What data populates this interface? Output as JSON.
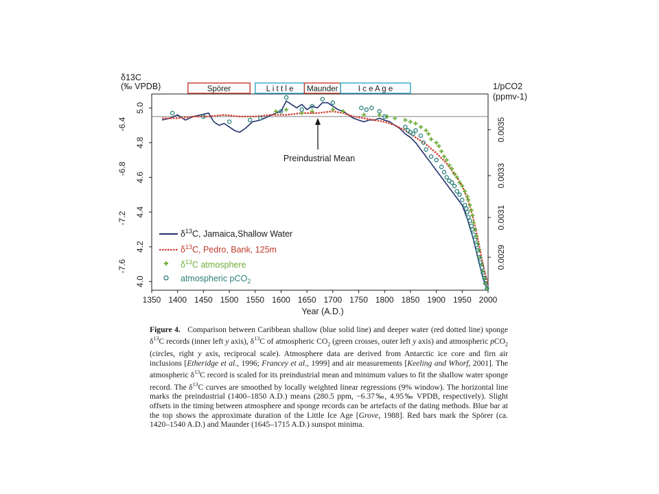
{
  "chart_data": {
    "type": "line",
    "x_label": "Year (A.D.)",
    "x_ticks": [
      1350,
      1400,
      1450,
      1500,
      1550,
      1600,
      1650,
      1700,
      1750,
      1800,
      1850,
      1900,
      1950,
      2000
    ],
    "xlim": [
      1350,
      2000
    ],
    "axis_inner_left": {
      "title_line1": "δ13C",
      "title_line2": "(‰ VPDB)",
      "ticks": [
        "4.0",
        "4.2",
        "4.4",
        "4.6",
        "4.8",
        "5.0"
      ],
      "ylim": [
        3.95,
        5.08
      ]
    },
    "axis_outer_left": {
      "ticks": [
        "-7.6",
        "-7.2",
        "-6.8",
        "-6.4"
      ]
    },
    "axis_right": {
      "title_line1": "1/pCO2",
      "title_line2": "(ppmv-1)",
      "ticks": [
        "0.0029",
        "0.0031",
        "0.0033",
        "0.0035"
      ],
      "scale": "reciprocal"
    },
    "reference_line": {
      "label": "Preindustrial Mean",
      "value": 4.95
    },
    "top_bars": [
      {
        "label": "Spörer",
        "start": 1420,
        "end": 1540,
        "color": "#c0392b"
      },
      {
        "label": "L i t t l e",
        "start": 1550,
        "end": 1645,
        "color": "#2fa4c8"
      },
      {
        "label": "Maunder",
        "start": 1645,
        "end": 1715,
        "color": "#c0392b"
      },
      {
        "label": "I c e   A g e",
        "start": 1715,
        "end": 1850,
        "color": "#2fa4c8"
      }
    ],
    "series": [
      {
        "name": "δ13C, Jamaica,Shallow Water",
        "style": "solid",
        "color": "#1f2f6b",
        "x": [
          1370,
          1385,
          1400,
          1415,
          1430,
          1445,
          1460,
          1470,
          1480,
          1490,
          1500,
          1510,
          1520,
          1530,
          1545,
          1560,
          1575,
          1590,
          1600,
          1610,
          1620,
          1630,
          1640,
          1650,
          1660,
          1670,
          1680,
          1690,
          1700,
          1710,
          1720,
          1730,
          1740,
          1750,
          1760,
          1770,
          1780,
          1790,
          1800,
          1810,
          1820,
          1830,
          1840,
          1850,
          1860,
          1870,
          1880,
          1890,
          1900,
          1910,
          1920,
          1930,
          1940,
          1950,
          1955,
          1960,
          1965,
          1970,
          1975,
          1980,
          1985,
          1990,
          1995,
          2000
        ],
        "y": [
          4.93,
          4.94,
          4.96,
          4.93,
          4.95,
          4.96,
          4.97,
          4.92,
          4.9,
          4.91,
          4.89,
          4.87,
          4.86,
          4.88,
          4.92,
          4.93,
          4.95,
          4.97,
          4.98,
          5.04,
          5.02,
          5.0,
          5.02,
          4.99,
          5.01,
          5.0,
          5.03,
          5.03,
          5.01,
          4.99,
          4.98,
          4.96,
          4.94,
          4.93,
          4.92,
          4.93,
          4.93,
          4.94,
          4.93,
          4.92,
          4.9,
          4.88,
          4.85,
          4.83,
          4.8,
          4.76,
          4.72,
          4.68,
          4.64,
          4.6,
          4.56,
          4.52,
          4.48,
          4.44,
          4.4,
          4.36,
          4.31,
          4.26,
          4.2,
          4.14,
          4.08,
          4.02,
          3.98,
          3.96
        ]
      },
      {
        "name": "δ13C, Pedro, Bank, 125m",
        "style": "dotted",
        "color": "#d23a2a",
        "x": [
          1370,
          1400,
          1430,
          1460,
          1490,
          1520,
          1550,
          1580,
          1610,
          1640,
          1670,
          1700,
          1720,
          1740,
          1760,
          1780,
          1800,
          1820,
          1840,
          1860,
          1880,
          1900,
          1920,
          1940,
          1950,
          1960,
          1970,
          1980,
          1990,
          2000
        ],
        "y": [
          4.94,
          4.94,
          4.95,
          4.95,
          4.96,
          4.95,
          4.95,
          4.96,
          4.96,
          4.97,
          4.97,
          4.98,
          4.97,
          4.95,
          4.94,
          4.93,
          4.92,
          4.9,
          4.87,
          4.83,
          4.79,
          4.74,
          4.68,
          4.6,
          4.55,
          4.48,
          4.38,
          4.25,
          4.1,
          3.98
        ]
      },
      {
        "name": "δ13C atmosphere",
        "style": "cross",
        "color": "#6fae3a",
        "x": [
          1590,
          1610,
          1640,
          1660,
          1700,
          1720,
          1760,
          1790,
          1805,
          1820,
          1840,
          1850,
          1860,
          1870,
          1880,
          1885,
          1890,
          1900,
          1905,
          1910,
          1915,
          1920,
          1925,
          1930,
          1935,
          1940,
          1945,
          1950,
          1955,
          1960,
          1962,
          1965,
          1968,
          1970,
          1972,
          1975,
          1978,
          1980,
          1983,
          1985,
          1988,
          1990,
          1993,
          1995,
          1998
        ],
        "y": [
          4.98,
          4.99,
          4.97,
          4.98,
          4.99,
          4.98,
          4.96,
          4.96,
          4.95,
          4.94,
          4.93,
          4.92,
          4.91,
          4.89,
          4.87,
          4.85,
          4.82,
          4.8,
          4.78,
          4.75,
          4.72,
          4.7,
          4.67,
          4.65,
          4.62,
          4.6,
          4.57,
          4.55,
          4.52,
          4.49,
          4.47,
          4.44,
          4.41,
          4.38,
          4.34,
          4.3,
          4.26,
          4.22,
          4.18,
          4.14,
          4.1,
          4.06,
          4.02,
          3.99,
          3.96
        ]
      },
      {
        "name": "atmospheric pCO2",
        "style": "circle",
        "color": "#2a7f7a",
        "x": [
          1390,
          1450,
          1500,
          1540,
          1560,
          1600,
          1610,
          1640,
          1660,
          1680,
          1700,
          1755,
          1765,
          1775,
          1790,
          1800,
          1840,
          1845,
          1850,
          1855,
          1860,
          1870,
          1875,
          1880,
          1890,
          1900,
          1910,
          1915,
          1920,
          1925,
          1930,
          1935,
          1940,
          1945,
          1950,
          1955,
          1958,
          1960,
          1962,
          1965,
          1968,
          1970,
          1972,
          1975,
          1978,
          1980,
          1983,
          1985,
          1988,
          1990,
          1993,
          1995,
          1998
        ],
        "y": [
          4.97,
          4.95,
          4.92,
          4.93,
          4.94,
          4.98,
          5.06,
          4.99,
          5.01,
          5.05,
          5.03,
          5.0,
          4.99,
          5.0,
          4.98,
          4.95,
          4.89,
          4.87,
          4.86,
          4.85,
          4.87,
          4.84,
          4.8,
          4.76,
          4.72,
          4.7,
          4.66,
          4.63,
          4.6,
          4.58,
          4.57,
          4.55,
          4.52,
          4.5,
          4.47,
          4.44,
          4.42,
          4.4,
          4.37,
          4.35,
          4.32,
          4.3,
          4.27,
          4.24,
          4.21,
          4.18,
          4.14,
          4.11,
          4.08,
          4.05,
          4.02,
          3.99,
          3.96
        ]
      }
    ]
  },
  "caption": {
    "label": "Figure 4.",
    "segments": [
      {
        "t": "Comparison between Caribbean shallow (blue solid line) and deeper water (red dotted line) sponge δ"
      },
      {
        "t": "13",
        "sup": true
      },
      {
        "t": "C records (inner left "
      },
      {
        "t": "y",
        "i": true
      },
      {
        "t": " axis), δ"
      },
      {
        "t": "13",
        "sup": true
      },
      {
        "t": "C of atmospheric CO"
      },
      {
        "t": "2",
        "sub": true
      },
      {
        "t": " (green crosses, outer left "
      },
      {
        "t": "y",
        "i": true
      },
      {
        "t": " axis) and atmospheric "
      },
      {
        "t": "p",
        "i": true
      },
      {
        "t": "CO"
      },
      {
        "t": "2",
        "sub": true
      },
      {
        "t": " (circles, right "
      },
      {
        "t": "y",
        "i": true
      },
      {
        "t": " axis, reciprocal scale). Atmosphere data are derived from Antarctic ice core and firn air inclusions ["
      },
      {
        "t": "Etheridge et al.",
        "i": true
      },
      {
        "t": ", 1996; "
      },
      {
        "t": "Francey et al.",
        "i": true
      },
      {
        "t": ", 1999] and air measurements ["
      },
      {
        "t": "Keeling and Whorf",
        "i": true
      },
      {
        "t": ", 2001]. The atmospheric δ"
      },
      {
        "t": "13",
        "sup": true
      },
      {
        "t": "C record is scaled for its preindustrial mean and minimum values to fit the shallow water sponge record. The δ"
      },
      {
        "t": "13",
        "sup": true
      },
      {
        "t": "C curves are smoothed by locally weighted linear regressions (9% window). The horizontal line marks the preindustrial (1400–1850 A.D.) means (280.5 ppm, −6.37‰, 4.95‰ VPDB, respectively). Slight offsets in the timing between atmosphere and sponge records can be artefacts of the dating methods. Blue bar at the top shows the approximate duration of the Little Ice Age ["
      },
      {
        "t": "Grove",
        "i": true
      },
      {
        "t": ", 1988]. Red bars mark the Spörer (ca. 1420–1540 A.D.) and Maunder (1645–1715 A.D.) sunspot minima."
      }
    ]
  }
}
